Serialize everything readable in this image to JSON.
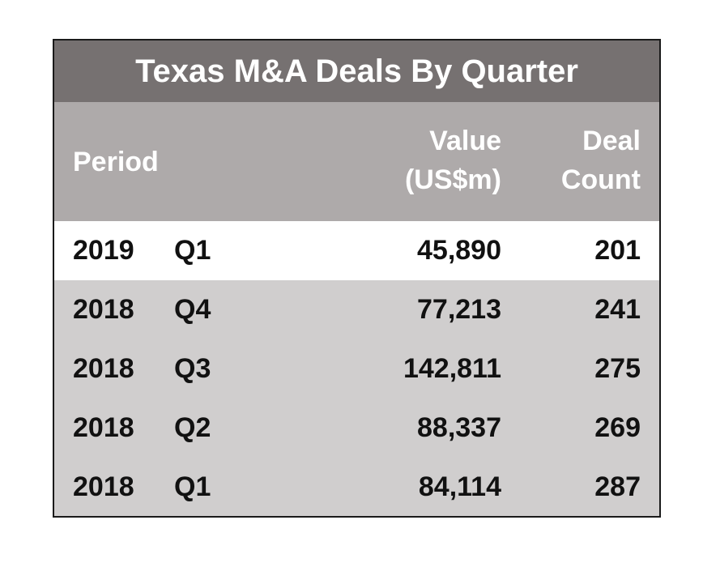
{
  "chart_data": {
    "type": "table",
    "title": "Texas M&A Deals By Quarter",
    "columns": {
      "period": "Period",
      "value_line1": "Value",
      "value_line2": "(US$m)",
      "count_line1": "Deal",
      "count_line2": "Count"
    },
    "rows": [
      {
        "year": "2019",
        "quarter": "Q1",
        "value": "45,890",
        "count": "201"
      },
      {
        "year": "2018",
        "quarter": "Q4",
        "value": "77,213",
        "count": "241"
      },
      {
        "year": "2018",
        "quarter": "Q3",
        "value": "142,811",
        "count": "275"
      },
      {
        "year": "2018",
        "quarter": "Q2",
        "value": "88,337",
        "count": "269"
      },
      {
        "year": "2018",
        "quarter": "Q1",
        "value": "84,114",
        "count": "287"
      }
    ],
    "colors": {
      "title_background": "#767171",
      "header_background": "#aeaaaa",
      "latest_row_background": "#ffffff",
      "past_row_background": "#d0cece",
      "header_text": "#ffffff",
      "body_text": "#111111"
    }
  }
}
